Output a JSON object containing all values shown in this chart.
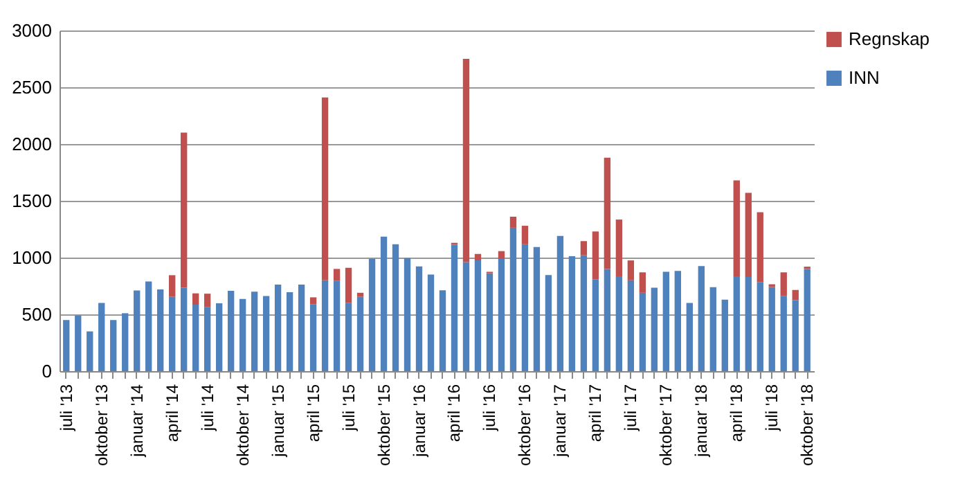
{
  "chart_data": {
    "type": "bar",
    "stacked": true,
    "categories": [
      "juli '13",
      null,
      null,
      "oktober '13",
      null,
      null,
      "januar '14",
      null,
      null,
      "april '14",
      null,
      null,
      "juli '14",
      null,
      null,
      "oktober '14",
      null,
      null,
      "januar '15",
      null,
      null,
      "april '15",
      null,
      null,
      "juli '15",
      null,
      null,
      "oktober '15",
      null,
      null,
      "januar '16",
      null,
      null,
      "april '16",
      null,
      null,
      "juli '16",
      null,
      null,
      "oktober '16",
      null,
      null,
      "januar '17",
      null,
      null,
      "april '17",
      null,
      null,
      "juli '17",
      null,
      null,
      "oktober '17",
      null,
      null,
      "januar '18",
      null,
      null,
      "april '18",
      null,
      null,
      "juli '18",
      null,
      null,
      "oktober '18"
    ],
    "series": [
      {
        "name": "INN",
        "color": "#4f81bd",
        "values": [
          450,
          490,
          350,
          600,
          450,
          510,
          710,
          790,
          720,
          655,
          735,
          585,
          565,
          598,
          708,
          635,
          700,
          662,
          762,
          695,
          762,
          590,
          800,
          795,
          600,
          655,
          990,
          1185,
          1117,
          995,
          922,
          850,
          712,
          1113,
          960,
          975,
          862,
          988,
          1263,
          1117,
          1093,
          846,
          1190,
          1012,
          1020,
          810,
          900,
          835,
          800,
          690,
          735,
          875,
          883,
          600,
          925,
          740,
          630,
          835,
          830,
          785,
          740,
          660,
          625,
          900
        ]
      },
      {
        "name": "Regnskap",
        "color": "#c0504d",
        "values": [
          null,
          null,
          null,
          null,
          null,
          null,
          null,
          null,
          null,
          190,
          1365,
          100,
          117,
          null,
          null,
          null,
          null,
          null,
          null,
          null,
          null,
          60,
          1610,
          105,
          310,
          35,
          null,
          null,
          null,
          null,
          null,
          null,
          null,
          17,
          1790,
          57,
          13,
          69,
          97,
          163,
          null,
          null,
          null,
          null,
          125,
          420,
          980,
          500,
          175,
          180,
          null,
          null,
          null,
          null,
          null,
          null,
          null,
          845,
          740,
          615,
          25,
          210,
          90,
          20
        ]
      }
    ],
    "ylim": [
      0,
      3000
    ],
    "yticks": [
      0,
      500,
      1000,
      1500,
      2000,
      2500,
      3000
    ],
    "grid": "y",
    "legend": "right"
  }
}
